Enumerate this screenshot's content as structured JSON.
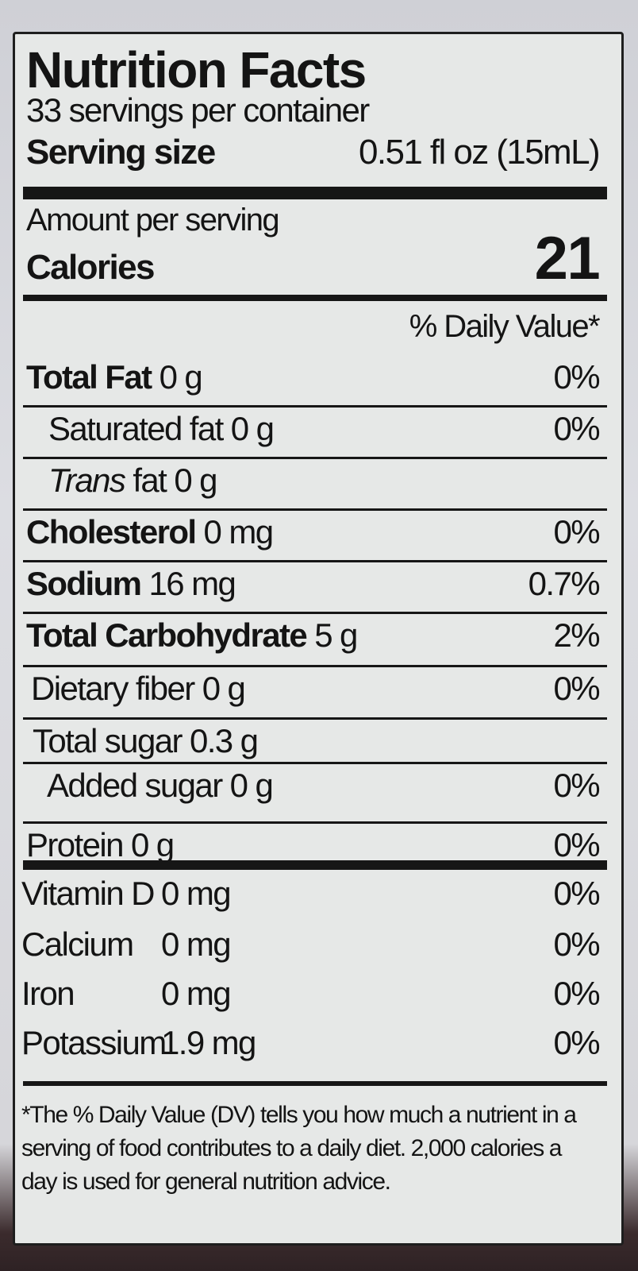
{
  "title": "Nutrition Facts",
  "servings_per_container": "33 servings per container",
  "serving_size": {
    "label": "Serving size",
    "value": "0.51 fl oz (15mL)"
  },
  "amount_per_serving": "Amount per serving",
  "calories": {
    "label": "Calories",
    "value": "21"
  },
  "dv_header": "% Daily Value*",
  "nutrients": [
    {
      "name": "Total Fat",
      "amount": "0 g",
      "dv": "0%"
    },
    {
      "name": "Saturated fat",
      "amount": "0 g",
      "dv": "0%"
    },
    {
      "name": "Trans",
      "name_suffix": "fat",
      "amount": "0 g",
      "dv": ""
    },
    {
      "name": "Cholesterol",
      "amount": "0 mg",
      "dv": "0%"
    },
    {
      "name": "Sodium",
      "amount": "16 mg",
      "dv": "0.7%"
    },
    {
      "name": "Total Carbohydrate",
      "amount": "5 g",
      "dv": "2%"
    },
    {
      "name": "Dietary fiber",
      "amount": "0 g",
      "dv": "0%"
    },
    {
      "name": "Total sugar",
      "amount": "0.3 g",
      "dv": ""
    },
    {
      "name": "Added sugar",
      "amount": "0 g",
      "dv": "0%"
    },
    {
      "name": "Protein",
      "amount": "0 g",
      "dv": "0%"
    }
  ],
  "vitamins": [
    {
      "name": "Vitamin D",
      "amount": "0 mg",
      "dv": "0%"
    },
    {
      "name": "Calcium",
      "amount": "0 mg",
      "dv": "0%"
    },
    {
      "name": "Iron",
      "amount": "0 mg",
      "dv": "0%"
    },
    {
      "name": "Potassium",
      "amount": "1.9 mg",
      "dv": "0%"
    }
  ],
  "footnote": "*The % Daily Value (DV) tells you how much a nutrient in a serving of food contributes to a daily diet. 2,000 calories a day is used for general nutrition advice."
}
